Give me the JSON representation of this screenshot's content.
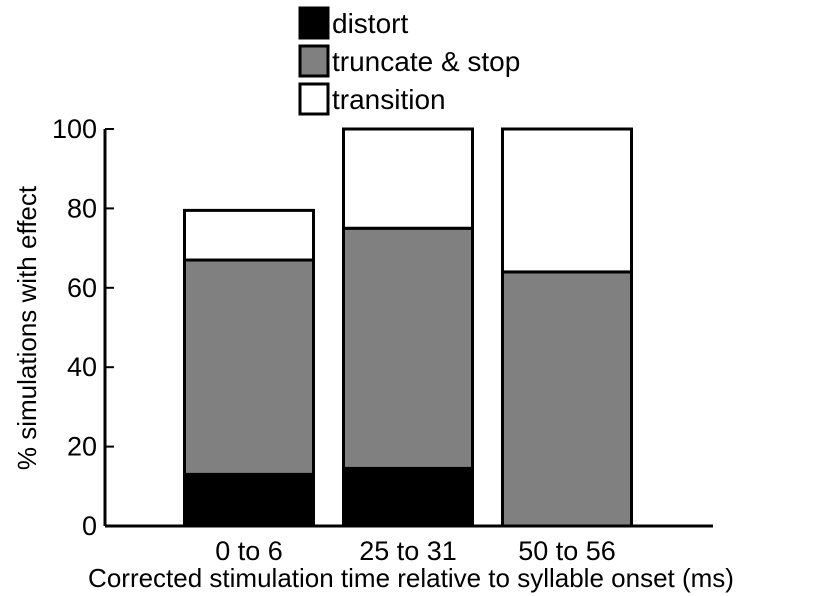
{
  "chart_data": {
    "type": "bar",
    "stacked": true,
    "categories": [
      "0 to 6",
      "25 to 31",
      "50 to 56"
    ],
    "series": [
      {
        "name": "distort",
        "color": "#000000",
        "values": [
          13,
          14.5,
          0
        ]
      },
      {
        "name": "truncate & stop",
        "color": "#808080",
        "values": [
          54,
          60.5,
          64
        ]
      },
      {
        "name": "transition",
        "color": "#ffffff",
        "values": [
          12.5,
          25,
          36
        ]
      }
    ],
    "title": "",
    "xlabel": "Corrected stimulation time relative to syllable onset (ms)",
    "ylabel": "% simulations with effect",
    "ylim": [
      0,
      100
    ],
    "yticks": [
      0,
      20,
      40,
      60,
      80,
      100
    ],
    "grid": false,
    "legend": "top-center"
  }
}
